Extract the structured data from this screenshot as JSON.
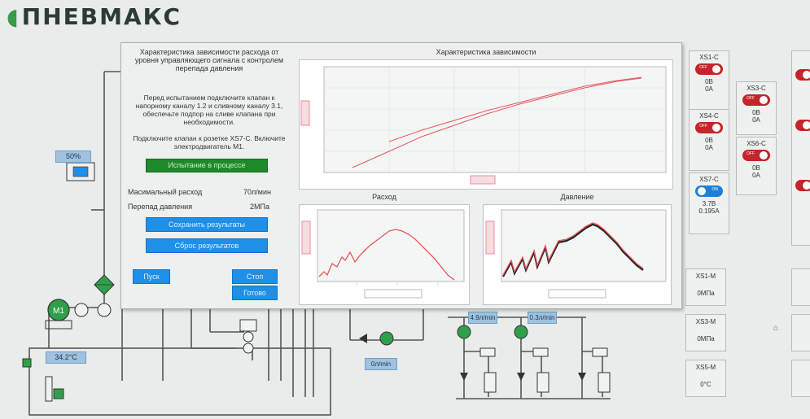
{
  "logo": {
    "text": "ПНЕВМАКС"
  },
  "popup": {
    "title": "Характеристика зависимости расхода от уровня управляющего сигнала с контролем перепада давления",
    "instruction1": "Перед испытанием подключите клапан к напорному каналу 1.2 и сливному каналу 3.1, обеспечьте подпор на сливе клапана при необходимости.",
    "instruction2": "Подключите клапан к розетке XS7-C. Включите электродвигатель M1.",
    "status": "Испытание в процессе",
    "max_flow_label": "Масимальный расход",
    "max_flow_value": "70л/мин",
    "pressure_drop_label": "Перепад давления",
    "pressure_drop_value": "2МПа",
    "save_label": "Сохранить результаты",
    "reset_label": "Сброс результатов",
    "start_label": "Пуск",
    "stop_label": "Стоп",
    "ready_label": "Готово"
  },
  "charts": {
    "main_title": "Характеристика зависимости",
    "flow_title": "Расход",
    "pressure_title": "Давление"
  },
  "schema": {
    "valve_level": "50%",
    "temperature": "34.2°C",
    "flow_meter_1": "4.9л/min",
    "flow_meter_2": "0.3л/min",
    "flow_meter_3": "0л/min",
    "motor_label": "M1"
  },
  "sockets_c": [
    {
      "name": "XS1-C",
      "state": "off",
      "voltage": "0В",
      "current": "0А"
    },
    {
      "name": "XS3-C",
      "state": "off",
      "voltage": "0В",
      "current": "0А"
    },
    {
      "name": "XS4-C",
      "state": "off",
      "voltage": "0В",
      "current": "0А"
    },
    {
      "name": "XS6-C",
      "state": "off",
      "voltage": "0В",
      "current": "0А"
    },
    {
      "name": "XS7-C",
      "state": "on",
      "voltage": "3.7В",
      "current": "0.195А"
    }
  ],
  "sockets_m": [
    {
      "name": "XS1-M",
      "value": "0МПа"
    },
    {
      "name": "XS3-M",
      "value": "0МПа"
    },
    {
      "name": "XS5-M",
      "value": "0°C"
    }
  ],
  "toggle_text": {
    "off": "OFF",
    "on": "ON"
  },
  "colors": {
    "accent_blue": "#1f8fe8",
    "status_green": "#1e8a2a",
    "off_red": "#c4242a",
    "on_blue": "#1f7fd6",
    "trace_red": "#e8555a"
  }
}
